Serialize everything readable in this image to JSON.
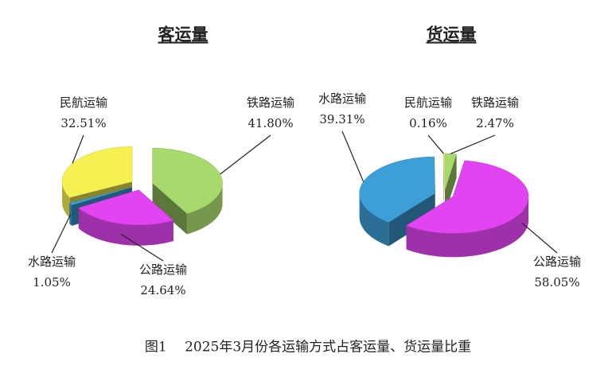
{
  "chart_data": [
    {
      "type": "pie3d",
      "title": "客运量",
      "categories": [
        "铁路运输",
        "公路运输",
        "水路运输",
        "民航运输"
      ],
      "values": [
        41.8,
        24.64,
        1.05,
        32.51
      ],
      "value_labels": [
        "41.80%",
        "24.64%",
        "1.05%",
        "32.51%"
      ],
      "colors": [
        "#a8d96c",
        "#e244f2",
        "#3d9fd8",
        "#f5f152"
      ]
    },
    {
      "type": "pie3d",
      "title": "货运量",
      "categories": [
        "铁路运输",
        "公路运输",
        "水路运输",
        "民航运输"
      ],
      "values": [
        2.47,
        58.05,
        39.31,
        0.16
      ],
      "value_labels": [
        "2.47%",
        "58.05%",
        "39.31%",
        "0.16%"
      ],
      "colors": [
        "#a8d96c",
        "#e244f2",
        "#3d9fd8",
        "#f5f152"
      ]
    }
  ],
  "caption": "图1　 2025年3月份各运输方式占客运量、货运量比重"
}
